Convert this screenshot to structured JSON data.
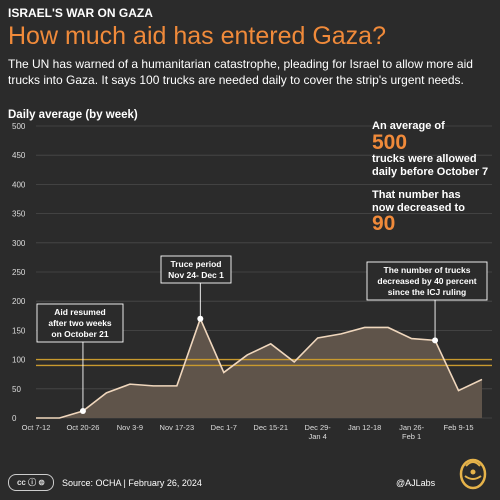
{
  "header": {
    "kicker": "ISRAEL'S WAR ON GAZA",
    "title": "How much aid has entered Gaza?",
    "subtitle": "The UN has warned of a humanitarian catastrophe, pleading for Israel to allow more aid trucks into Gaza. It says 100 trucks are needed daily to cover the strip's urgent needs."
  },
  "side_panel": {
    "line1": "An average of",
    "num1": "500",
    "line2": "trucks were allowed",
    "line3": "daily before October 7",
    "line4": "That number has",
    "line5": "now decreased to",
    "num2": "90"
  },
  "annotations": {
    "aid_resumed": [
      "Aid resumed",
      "after two weeks",
      "on October 21"
    ],
    "truce": [
      "Truce period",
      "Nov 24- Dec 1"
    ],
    "icj": [
      "The number of trucks",
      "decreased by 40 percent",
      "since the ICJ ruling"
    ]
  },
  "footer": {
    "cc": "cc ⓘ ⊜",
    "source": "Source:  OCHA   |   February 26, 2024",
    "brand": "@AJLabs"
  },
  "colors": {
    "orange": "#f08a3a",
    "line": "#f0d7bd",
    "fill": "#5f544a",
    "ref": "#c99a2e",
    "bg": "#2b2b2b"
  },
  "chart_data": {
    "type": "area",
    "ylabel": "Daily average (by week)",
    "ylim": [
      0,
      500
    ],
    "yticks": [
      0,
      50,
      100,
      150,
      200,
      250,
      300,
      350,
      400,
      450,
      500
    ],
    "reference_lines": [
      100,
      90
    ],
    "x_tick_labels": [
      "Oct 7-12",
      "Oct 20-26",
      "Nov 3-9",
      "Nov 17-23",
      "Dec 1-7",
      "Dec 15-21",
      "Dec 29-\nJan 4",
      "Jan 12-18",
      "Jan 26-\nFeb 1",
      "Feb 9-15"
    ],
    "series": [
      {
        "values": [
          0,
          0,
          12,
          43,
          58,
          55,
          55,
          170,
          78,
          108,
          127,
          96,
          137,
          144,
          155,
          155,
          136,
          133,
          47,
          66
        ]
      }
    ],
    "highlighted_points": [
      2,
      7,
      17
    ]
  }
}
